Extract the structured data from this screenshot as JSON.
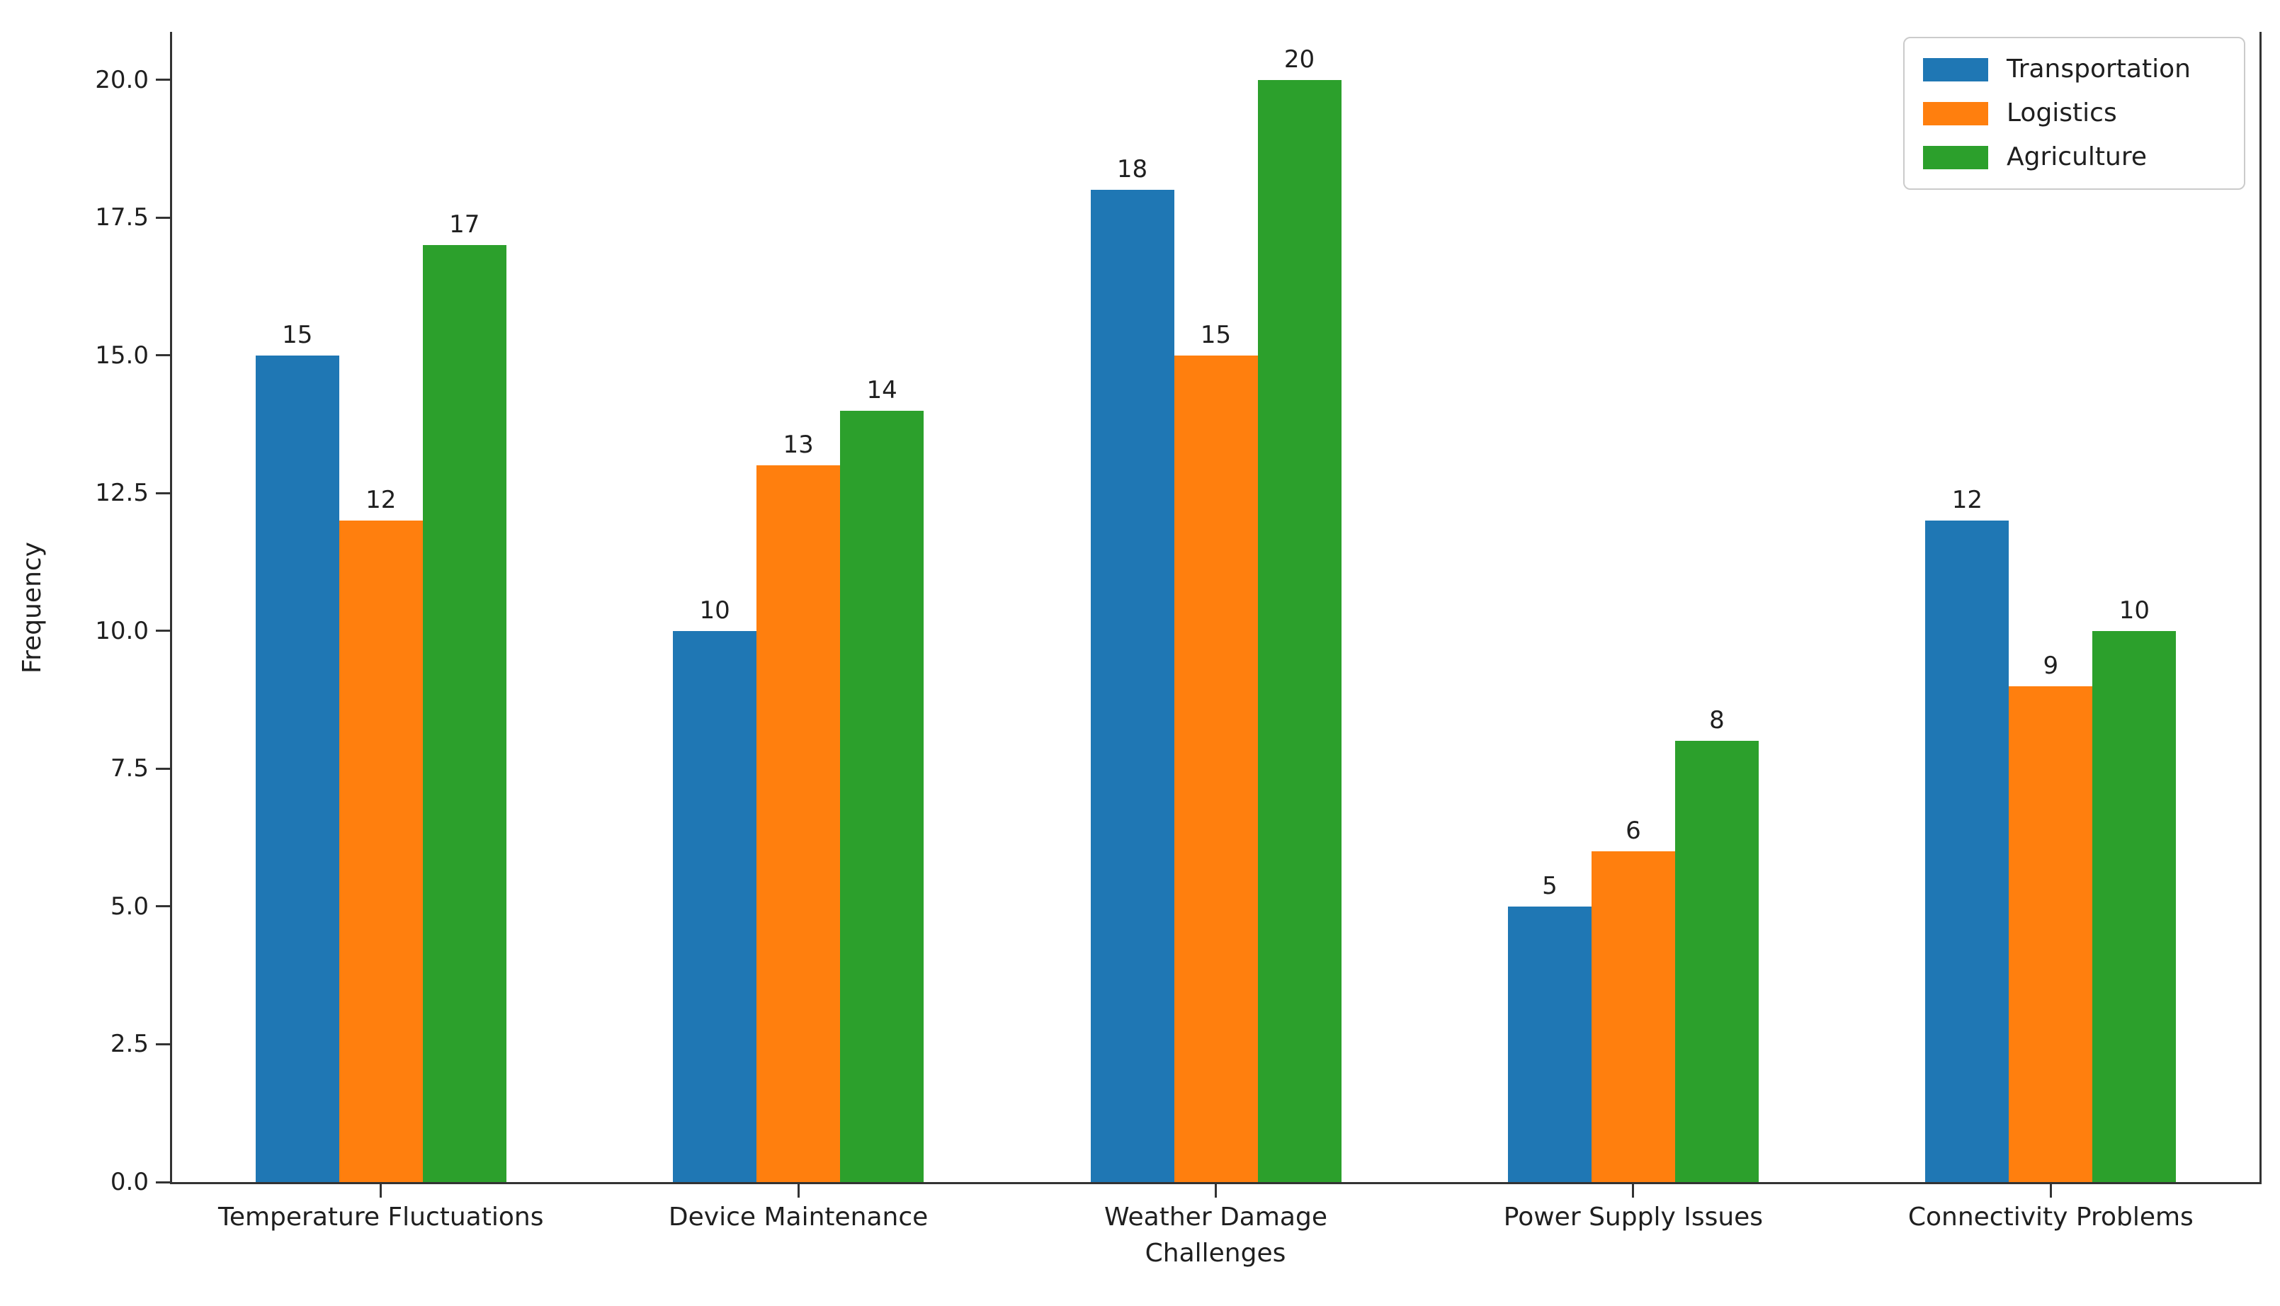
{
  "chart_data": {
    "type": "bar",
    "categories": [
      "Temperature Fluctuations",
      "Device Maintenance",
      "Weather Damage",
      "Power Supply Issues",
      "Connectivity Problems"
    ],
    "series": [
      {
        "name": "Transportation",
        "color": "#1f77b4",
        "values": [
          15,
          10,
          18,
          5,
          12
        ]
      },
      {
        "name": "Logistics",
        "color": "#ff7f0e",
        "values": [
          12,
          13,
          15,
          6,
          9
        ]
      },
      {
        "name": "Agriculture",
        "color": "#2ca02c",
        "values": [
          17,
          14,
          20,
          8,
          10
        ]
      }
    ],
    "xlabel": "Challenges",
    "ylabel": "Frequency",
    "ylim": [
      0,
      20.87
    ],
    "yticks": [
      0.0,
      2.5,
      5.0,
      7.5,
      10.0,
      12.5,
      15.0,
      17.5,
      20.0
    ],
    "ytick_labels": [
      "0.0",
      "2.5",
      "5.0",
      "7.5",
      "10.0",
      "12.5",
      "15.0",
      "17.5",
      "20.0"
    ],
    "bar_value_labels": true,
    "grid": false,
    "legend_position": "upper right",
    "spine_color": "#333333",
    "legend_border_color": "#cbcbcb"
  }
}
